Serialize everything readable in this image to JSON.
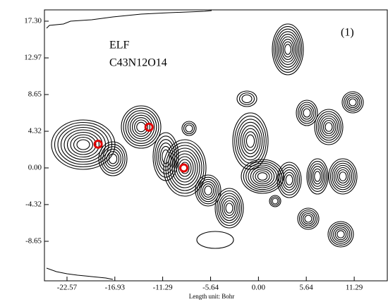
{
  "chart_data": {
    "type": "contour",
    "annotations": [
      "ELF",
      "C43N12O14",
      "(1)"
    ],
    "xlabel": "Length unit: Bohr",
    "xlim": [
      -25.23,
      15.19
    ],
    "ylim": [
      -13.31,
      18.63
    ],
    "xticks": [
      -22.57,
      -16.93,
      -11.29,
      -5.64,
      {
        "value": 0,
        "label": "0.00"
      },
      5.64,
      11.29
    ],
    "yticks": [
      {
        "value": 17.3,
        "label": "17.30"
      },
      12.97,
      8.65,
      4.32,
      {
        "value": 0,
        "label": "0.00"
      },
      -4.32,
      -8.65
    ],
    "markers": {
      "x": [
        -18.9,
        -12.9,
        -8.8
      ],
      "y": [
        2.8,
        4.8,
        0
      ],
      "color": "#e00000"
    }
  }
}
